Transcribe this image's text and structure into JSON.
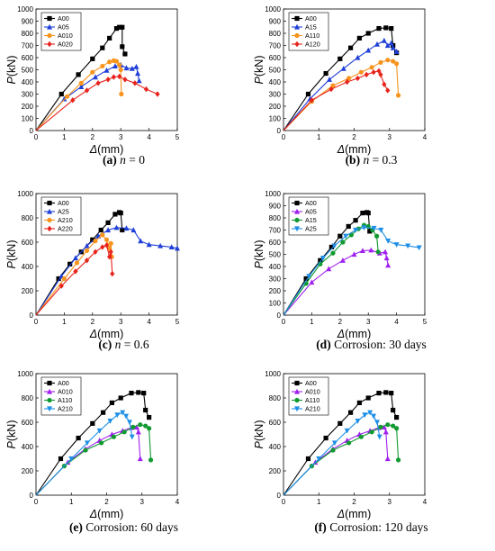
{
  "colors": {
    "A00": "#000000",
    "blue": "#1f3fd8",
    "orange": "#f7941d",
    "red": "#e8231c",
    "purple": "#a020f0",
    "green": "#119a31",
    "sky": "#1f8fe6"
  },
  "chart_data": [
    {
      "type": "line",
      "caption": {
        "label": "(a)",
        "rest": "n",
        "tail": " = 0"
      },
      "xlabel": {
        "sym": "Δ",
        "unit": "(mm)"
      },
      "ylabel": {
        "sym": "P",
        "unit": "(kN)"
      },
      "xlim": [
        0,
        5
      ],
      "xticks": [
        0,
        1,
        2,
        3,
        4,
        5
      ],
      "ylim": [
        0,
        1000
      ],
      "yticks": [
        0,
        100,
        200,
        300,
        400,
        500,
        600,
        700,
        800,
        900,
        1000
      ],
      "legend_position": "top-left",
      "series": [
        {
          "name": "A00",
          "color": "#000000",
          "marker": "square",
          "x": [
            0,
            0.9,
            1.5,
            2.0,
            2.35,
            2.6,
            2.85,
            2.95,
            3.05,
            3.05,
            3.15
          ],
          "y": [
            0,
            300,
            460,
            590,
            680,
            760,
            840,
            850,
            850,
            690,
            630
          ]
        },
        {
          "name": "A05",
          "color": "#1f3fd8",
          "marker": "triangle",
          "x": [
            0,
            1.0,
            1.6,
            2.1,
            2.5,
            2.8,
            3.0,
            3.2,
            3.4,
            3.55,
            3.6,
            3.65
          ],
          "y": [
            0,
            260,
            360,
            440,
            495,
            530,
            540,
            515,
            510,
            525,
            470,
            410
          ]
        },
        {
          "name": "A010",
          "color": "#f7941d",
          "marker": "circle",
          "x": [
            0,
            1.1,
            1.6,
            2.0,
            2.35,
            2.6,
            2.75,
            2.85,
            2.95,
            3.0,
            3.02
          ],
          "y": [
            0,
            280,
            390,
            480,
            530,
            565,
            575,
            570,
            540,
            500,
            300
          ]
        },
        {
          "name": "A020",
          "color": "#e8231c",
          "marker": "diamond",
          "x": [
            0,
            1.3,
            1.8,
            2.2,
            2.55,
            2.75,
            2.95,
            3.15,
            3.5,
            3.9,
            4.3
          ],
          "y": [
            0,
            250,
            330,
            390,
            420,
            440,
            445,
            420,
            390,
            340,
            300
          ]
        }
      ]
    },
    {
      "type": "line",
      "caption": {
        "label": "(b)",
        "rest": "n",
        "tail": " = 0.3"
      },
      "xlabel": {
        "sym": "Δ",
        "unit": "(mm)"
      },
      "ylabel": {
        "sym": "P",
        "unit": "(kN)"
      },
      "xlim": [
        0,
        4
      ],
      "xticks": [
        0,
        1,
        2,
        3,
        4
      ],
      "ylim": [
        0,
        1000
      ],
      "yticks": [
        0,
        100,
        200,
        300,
        400,
        500,
        600,
        700,
        800,
        900,
        1000
      ],
      "legend_position": "top-left",
      "series": [
        {
          "name": "A00",
          "color": "#000000",
          "marker": "square",
          "x": [
            0,
            0.7,
            1.2,
            1.6,
            1.9,
            2.15,
            2.4,
            2.7,
            2.9,
            3.05,
            3.1,
            3.2
          ],
          "y": [
            0,
            300,
            470,
            590,
            680,
            760,
            800,
            840,
            845,
            840,
            700,
            640
          ]
        },
        {
          "name": "A15",
          "color": "#1f3fd8",
          "marker": "triangle",
          "x": [
            0,
            0.75,
            1.3,
            1.7,
            2.1,
            2.4,
            2.65,
            2.85,
            2.95,
            3.05,
            3.1,
            3.2
          ],
          "y": [
            0,
            260,
            420,
            510,
            600,
            660,
            710,
            740,
            700,
            720,
            680,
            650
          ]
        },
        {
          "name": "A110",
          "color": "#f7941d",
          "marker": "circle",
          "x": [
            0,
            0.8,
            1.4,
            1.85,
            2.2,
            2.5,
            2.75,
            2.95,
            3.1,
            3.2,
            3.25
          ],
          "y": [
            0,
            240,
            370,
            430,
            480,
            520,
            560,
            580,
            570,
            550,
            290
          ]
        },
        {
          "name": "A120",
          "color": "#e8231c",
          "marker": "diamond",
          "x": [
            0,
            0.8,
            1.35,
            1.8,
            2.1,
            2.35,
            2.55,
            2.7,
            2.75,
            2.85,
            2.95
          ],
          "y": [
            0,
            250,
            340,
            400,
            430,
            460,
            480,
            490,
            460,
            380,
            330
          ]
        }
      ]
    },
    {
      "type": "line",
      "caption": {
        "label": "(c)",
        "rest": "n",
        "tail": " = 0.6"
      },
      "xlabel": {
        "sym": "Δ",
        "unit": "(mm)"
      },
      "ylabel": {
        "sym": "P",
        "unit": "(kN)"
      },
      "xlim": [
        0,
        5
      ],
      "xticks": [
        0,
        1,
        2,
        3,
        4,
        5
      ],
      "ylim": [
        0,
        1000
      ],
      "yticks": [
        0,
        200,
        400,
        600,
        800,
        1000
      ],
      "legend_position": "top-left",
      "series": [
        {
          "name": "A00",
          "color": "#000000",
          "marker": "square",
          "x": [
            0,
            0.8,
            1.2,
            1.6,
            2.0,
            2.3,
            2.55,
            2.8,
            2.95,
            3.0,
            3.05
          ],
          "y": [
            0,
            300,
            420,
            520,
            620,
            700,
            760,
            830,
            845,
            840,
            700
          ]
        },
        {
          "name": "A25",
          "color": "#1f3fd8",
          "marker": "triangle",
          "x": [
            0,
            0.9,
            1.4,
            1.8,
            2.2,
            2.55,
            2.85,
            3.2,
            3.45,
            3.7,
            4.0,
            4.4,
            4.8,
            5.0
          ],
          "y": [
            0,
            320,
            470,
            570,
            650,
            700,
            720,
            715,
            700,
            610,
            580,
            570,
            560,
            550
          ]
        },
        {
          "name": "A210",
          "color": "#f7941d",
          "marker": "circle",
          "x": [
            0,
            1.0,
            1.45,
            1.8,
            2.1,
            2.35,
            2.5,
            2.6,
            2.65,
            2.68
          ],
          "y": [
            0,
            300,
            430,
            530,
            610,
            660,
            620,
            550,
            590,
            480
          ]
        },
        {
          "name": "A220",
          "color": "#e8231c",
          "marker": "diamond",
          "x": [
            0,
            0.9,
            1.4,
            1.8,
            2.1,
            2.35,
            2.5,
            2.6,
            2.65,
            2.7
          ],
          "y": [
            0,
            240,
            360,
            450,
            520,
            560,
            575,
            480,
            520,
            340
          ]
        }
      ]
    },
    {
      "type": "line",
      "caption": {
        "label": "(d)",
        "rest": "Corrosion: 30 days",
        "tail": ""
      },
      "xlabel": {
        "sym": "Δ",
        "unit": "(mm)"
      },
      "ylabel": {
        "sym": "P",
        "unit": "(kN)"
      },
      "xlim": [
        0,
        5
      ],
      "xticks": [
        0,
        1,
        2,
        3,
        4,
        5
      ],
      "ylim": [
        0,
        1000
      ],
      "yticks": [
        0,
        100,
        200,
        300,
        400,
        500,
        600,
        700,
        800,
        900,
        1000
      ],
      "legend_position": "top-left",
      "series": [
        {
          "name": "A00",
          "color": "#000000",
          "marker": "square",
          "x": [
            0,
            0.8,
            1.3,
            1.7,
            2.0,
            2.3,
            2.55,
            2.8,
            2.95,
            3.0,
            3.05
          ],
          "y": [
            0,
            300,
            450,
            560,
            650,
            730,
            780,
            840,
            845,
            840,
            690
          ]
        },
        {
          "name": "A05",
          "color": "#a020f0",
          "marker": "triangle",
          "x": [
            0,
            1.0,
            1.6,
            2.1,
            2.5,
            2.8,
            3.1,
            3.4,
            3.6,
            3.65,
            3.7
          ],
          "y": [
            0,
            270,
            380,
            450,
            500,
            530,
            535,
            510,
            520,
            470,
            410
          ]
        },
        {
          "name": "A15",
          "color": "#119a31",
          "marker": "circle",
          "x": [
            0,
            0.8,
            1.3,
            1.75,
            2.1,
            2.4,
            2.65,
            2.85,
            3.0,
            3.15,
            3.3,
            3.35
          ],
          "y": [
            0,
            260,
            420,
            510,
            600,
            660,
            710,
            740,
            730,
            700,
            650,
            520
          ]
        },
        {
          "name": "A25",
          "color": "#1f8fe6",
          "marker": "triangledown",
          "x": [
            0,
            0.9,
            1.4,
            1.8,
            2.2,
            2.55,
            2.85,
            3.2,
            3.45,
            3.7,
            4.0,
            4.4,
            4.8
          ],
          "y": [
            0,
            320,
            470,
            570,
            650,
            700,
            720,
            715,
            700,
            610,
            580,
            570,
            555
          ]
        }
      ]
    },
    {
      "type": "line",
      "caption": {
        "label": "(e)",
        "rest": "Corrosion: 60 days",
        "tail": ""
      },
      "xlabel": {
        "sym": "Δ",
        "unit": "(mm)"
      },
      "ylabel": {
        "sym": "P",
        "unit": "(kN)"
      },
      "xlim": [
        0,
        4
      ],
      "xticks": [
        0,
        1,
        2,
        3,
        4
      ],
      "ylim": [
        0,
        1000
      ],
      "yticks": [
        0,
        200,
        400,
        600,
        800,
        1000
      ],
      "legend_position": "top-left",
      "series": [
        {
          "name": "A00",
          "color": "#000000",
          "marker": "square",
          "x": [
            0,
            0.7,
            1.2,
            1.6,
            1.9,
            2.15,
            2.4,
            2.7,
            2.9,
            3.05,
            3.1,
            3.2
          ],
          "y": [
            0,
            300,
            470,
            590,
            680,
            760,
            800,
            840,
            845,
            840,
            700,
            640
          ]
        },
        {
          "name": "A010",
          "color": "#a020f0",
          "marker": "triangle",
          "x": [
            0,
            0.9,
            1.4,
            1.8,
            2.15,
            2.45,
            2.7,
            2.85,
            2.9,
            2.95
          ],
          "y": [
            0,
            270,
            380,
            450,
            500,
            530,
            555,
            560,
            520,
            300
          ]
        },
        {
          "name": "A110",
          "color": "#119a31",
          "marker": "circle",
          "x": [
            0,
            0.8,
            1.4,
            1.85,
            2.2,
            2.5,
            2.75,
            2.95,
            3.1,
            3.2,
            3.25
          ],
          "y": [
            0,
            240,
            370,
            430,
            480,
            520,
            560,
            580,
            570,
            550,
            290
          ]
        },
        {
          "name": "A210",
          "color": "#1f8fe6",
          "marker": "triangledown",
          "x": [
            0,
            1.0,
            1.45,
            1.8,
            2.1,
            2.3,
            2.45,
            2.55,
            2.65,
            2.72
          ],
          "y": [
            0,
            300,
            430,
            530,
            610,
            660,
            680,
            650,
            600,
            480
          ]
        }
      ]
    },
    {
      "type": "line",
      "caption": {
        "label": "(f)",
        "rest": "Corrosion: 120 days",
        "tail": ""
      },
      "xlabel": {
        "sym": "Δ",
        "unit": "(mm)"
      },
      "ylabel": {
        "sym": "P",
        "unit": "(kN)"
      },
      "xlim": [
        0,
        4
      ],
      "xticks": [
        0,
        1,
        2,
        3,
        4
      ],
      "ylim": [
        0,
        1000
      ],
      "yticks": [
        0,
        200,
        400,
        600,
        800,
        1000
      ],
      "legend_position": "top-left",
      "series": [
        {
          "name": "A00",
          "color": "#000000",
          "marker": "square",
          "x": [
            0,
            0.7,
            1.2,
            1.6,
            1.9,
            2.15,
            2.4,
            2.7,
            2.9,
            3.05,
            3.1,
            3.2
          ],
          "y": [
            0,
            300,
            470,
            590,
            680,
            760,
            800,
            840,
            845,
            840,
            700,
            640
          ]
        },
        {
          "name": "A010",
          "color": "#a020f0",
          "marker": "triangle",
          "x": [
            0,
            0.9,
            1.4,
            1.8,
            2.15,
            2.45,
            2.7,
            2.85,
            2.9,
            2.95
          ],
          "y": [
            0,
            270,
            380,
            450,
            500,
            530,
            555,
            560,
            520,
            300
          ]
        },
        {
          "name": "A110",
          "color": "#119a31",
          "marker": "circle",
          "x": [
            0,
            0.8,
            1.4,
            1.85,
            2.2,
            2.5,
            2.75,
            2.95,
            3.1,
            3.2,
            3.25
          ],
          "y": [
            0,
            240,
            370,
            430,
            480,
            520,
            560,
            580,
            570,
            550,
            290
          ]
        },
        {
          "name": "A210",
          "color": "#1f8fe6",
          "marker": "triangledown",
          "x": [
            0,
            1.0,
            1.45,
            1.8,
            2.1,
            2.3,
            2.45,
            2.55,
            2.65,
            2.72
          ],
          "y": [
            0,
            300,
            430,
            530,
            610,
            660,
            680,
            650,
            600,
            480
          ]
        }
      ]
    }
  ]
}
